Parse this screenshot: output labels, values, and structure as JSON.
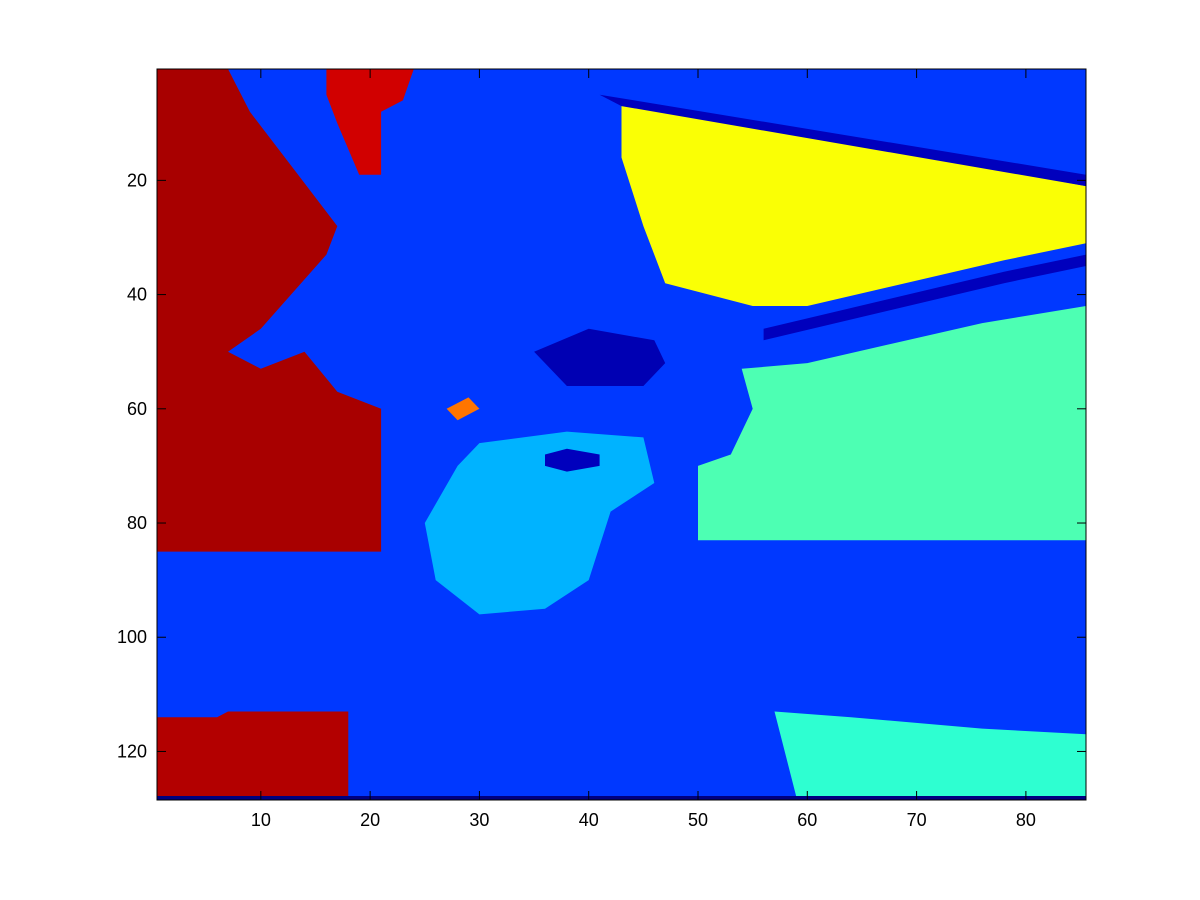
{
  "chart_data": {
    "type": "heatmap",
    "title": "",
    "xlabel": "",
    "ylabel": "",
    "colormap": "jet",
    "xlim": [
      0.5,
      85.5
    ],
    "ylim": [
      0.5,
      128.5
    ],
    "y_reversed": true,
    "x_ticks": [
      "10",
      "20",
      "30",
      "40",
      "50",
      "60",
      "70",
      "80"
    ],
    "y_ticks": [
      "20",
      "40",
      "60",
      "80",
      "100",
      "120"
    ],
    "grid": false,
    "colorbar": false,
    "regions": [
      {
        "name": "background-blue",
        "value": 0.18,
        "polygon": [
          [
            0.5,
            0.5
          ],
          [
            85.5,
            0.5
          ],
          [
            85.5,
            128.5
          ],
          [
            0.5,
            128.5
          ]
        ]
      },
      {
        "name": "red-left-upper",
        "value": 0.96,
        "polygon": [
          [
            0.5,
            0.5
          ],
          [
            7,
            0.5
          ],
          [
            9,
            8
          ],
          [
            13,
            18
          ],
          [
            17,
            28
          ],
          [
            16,
            33
          ],
          [
            10,
            46
          ],
          [
            7,
            50
          ],
          [
            10,
            53
          ],
          [
            14,
            50
          ],
          [
            17,
            57
          ],
          [
            21,
            60
          ],
          [
            21,
            85
          ],
          [
            0.5,
            85
          ]
        ]
      },
      {
        "name": "red-top",
        "value": 0.92,
        "polygon": [
          [
            16,
            0.5
          ],
          [
            24,
            0.5
          ],
          [
            23,
            6
          ],
          [
            21,
            8
          ],
          [
            21,
            19
          ],
          [
            19,
            19
          ],
          [
            17,
            10
          ],
          [
            16,
            5
          ]
        ]
      },
      {
        "name": "red-bottom-left",
        "value": 0.95,
        "polygon": [
          [
            0.5,
            114
          ],
          [
            6,
            114
          ],
          [
            7,
            113
          ],
          [
            18,
            113
          ],
          [
            18,
            128
          ],
          [
            0.5,
            128
          ]
        ]
      },
      {
        "name": "yellow-upper-right",
        "value": 0.62,
        "polygon": [
          [
            43,
            6
          ],
          [
            85.5,
            21
          ],
          [
            85.5,
            31
          ],
          [
            78,
            34
          ],
          [
            60,
            42
          ],
          [
            55,
            42
          ],
          [
            47,
            38
          ],
          [
            45,
            28
          ],
          [
            43,
            16
          ]
        ]
      },
      {
        "name": "cyan-right",
        "value": 0.45,
        "polygon": [
          [
            54,
            53
          ],
          [
            60,
            52
          ],
          [
            76,
            45
          ],
          [
            85.5,
            42
          ],
          [
            85.5,
            83
          ],
          [
            50,
            83
          ],
          [
            50,
            70
          ],
          [
            53,
            68
          ],
          [
            55,
            60
          ]
        ]
      },
      {
        "name": "cyan-lower-right",
        "value": 0.42,
        "polygon": [
          [
            57,
            113
          ],
          [
            64,
            114
          ],
          [
            76,
            116
          ],
          [
            85.5,
            117
          ],
          [
            85.5,
            128
          ],
          [
            59,
            128
          ]
        ]
      },
      {
        "name": "dark-band-top-right",
        "value": 0.06,
        "polygon": [
          [
            41,
            5
          ],
          [
            85.5,
            19
          ],
          [
            85.5,
            21
          ],
          [
            43,
            7
          ]
        ]
      },
      {
        "name": "dark-band-right",
        "value": 0.06,
        "polygon": [
          [
            56,
            46
          ],
          [
            78,
            36
          ],
          [
            85.5,
            33
          ],
          [
            85.5,
            35
          ],
          [
            78,
            38
          ],
          [
            56,
            48
          ]
        ]
      },
      {
        "name": "dark-spot-head",
        "value": 0.05,
        "polygon": [
          [
            35,
            50
          ],
          [
            40,
            46
          ],
          [
            46,
            48
          ],
          [
            47,
            52
          ],
          [
            45,
            56
          ],
          [
            38,
            56
          ]
        ]
      },
      {
        "name": "light-face",
        "value": 0.3,
        "polygon": [
          [
            30,
            66
          ],
          [
            38,
            64
          ],
          [
            45,
            65
          ],
          [
            46,
            73
          ],
          [
            42,
            78
          ],
          [
            40,
            90
          ],
          [
            36,
            95
          ],
          [
            30,
            96
          ],
          [
            26,
            90
          ],
          [
            25,
            80
          ],
          [
            28,
            70
          ]
        ]
      },
      {
        "name": "bright-spot",
        "value": 0.76,
        "polygon": [
          [
            27,
            60
          ],
          [
            29,
            58
          ],
          [
            30,
            60
          ],
          [
            28,
            62
          ]
        ]
      },
      {
        "name": "eye-dark",
        "value": 0.06,
        "polygon": [
          [
            36,
            68
          ],
          [
            38,
            67
          ],
          [
            41,
            68
          ],
          [
            41,
            70
          ],
          [
            38,
            71
          ],
          [
            36,
            70
          ]
        ]
      },
      {
        "name": "bottom-edge-dark",
        "value": 0.0,
        "polygon": [
          [
            0.5,
            127.8
          ],
          [
            85.5,
            127.8
          ],
          [
            85.5,
            128.5
          ],
          [
            0.5,
            128.5
          ]
        ]
      }
    ]
  }
}
